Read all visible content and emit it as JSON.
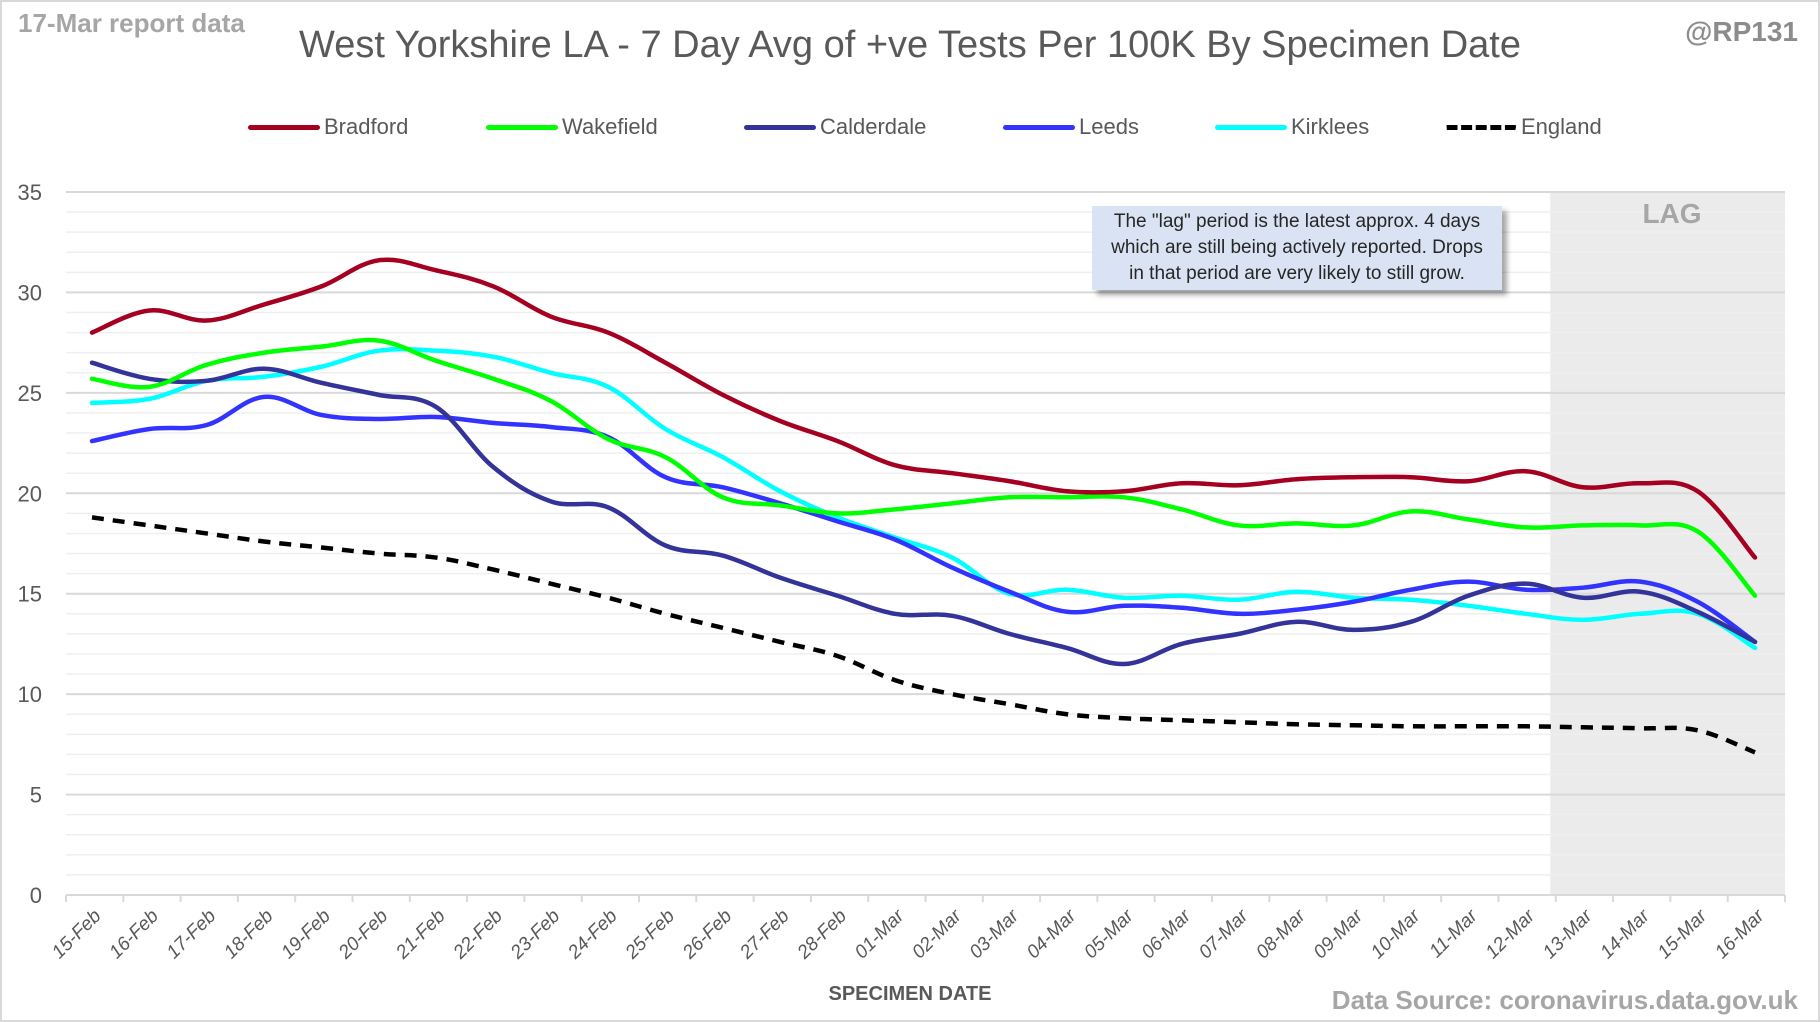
{
  "header": {
    "report_label": "17-Mar report data",
    "handle": "@RP131",
    "source": "Data Source: coronavirus.data.gov.uk"
  },
  "annotation": {
    "lines": [
      "The \"lag\" period is the latest approx. 4 days",
      "which are still being actively reported.  Drops",
      "in that period are very likely to still grow."
    ]
  },
  "lag": {
    "label": "LAG",
    "start": "13-Mar",
    "end": "16-Mar",
    "color": "#ebebeb"
  },
  "chart_data": {
    "type": "line",
    "title": "West Yorkshire LA - 7 Day Avg of +ve Tests Per 100K By Specimen Date",
    "xlabel": "SPECIMEN DATE",
    "ylabel": "",
    "ylim": [
      0,
      35
    ],
    "yticks": [
      0,
      5,
      10,
      15,
      20,
      25,
      30,
      35
    ],
    "minor_grid_step": 1,
    "grid": true,
    "legend_position": "top",
    "categories": [
      "15-Feb",
      "16-Feb",
      "17-Feb",
      "18-Feb",
      "19-Feb",
      "20-Feb",
      "21-Feb",
      "22-Feb",
      "23-Feb",
      "24-Feb",
      "25-Feb",
      "26-Feb",
      "27-Feb",
      "28-Feb",
      "01-Mar",
      "02-Mar",
      "03-Mar",
      "04-Mar",
      "05-Mar",
      "06-Mar",
      "07-Mar",
      "08-Mar",
      "09-Mar",
      "10-Mar",
      "11-Mar",
      "12-Mar",
      "13-Mar",
      "14-Mar",
      "15-Mar",
      "16-Mar"
    ],
    "series": [
      {
        "name": "Bradford",
        "color": "#a50021",
        "dashed": false,
        "values": [
          28.0,
          29.1,
          28.6,
          29.4,
          30.3,
          31.6,
          31.1,
          30.3,
          28.8,
          28.0,
          26.5,
          24.9,
          23.6,
          22.6,
          21.4,
          21.0,
          20.6,
          20.1,
          20.1,
          20.5,
          20.4,
          20.7,
          20.8,
          20.8,
          20.6,
          21.1,
          20.3,
          20.5,
          20.1,
          16.8
        ]
      },
      {
        "name": "Wakefield",
        "color": "#00ff00",
        "dashed": false,
        "values": [
          25.7,
          25.3,
          26.4,
          27.0,
          27.3,
          27.6,
          26.6,
          25.7,
          24.6,
          22.7,
          21.8,
          19.8,
          19.4,
          19.0,
          19.2,
          19.5,
          19.8,
          19.8,
          19.8,
          19.2,
          18.4,
          18.5,
          18.4,
          19.1,
          18.7,
          18.3,
          18.4,
          18.4,
          18.1,
          14.9
        ]
      },
      {
        "name": "Calderdale",
        "color": "#333399",
        "dashed": false,
        "values": [
          26.5,
          25.7,
          25.6,
          26.2,
          25.5,
          24.9,
          24.3,
          21.3,
          19.6,
          19.3,
          17.4,
          16.9,
          15.8,
          14.9,
          14.0,
          13.9,
          13.0,
          12.3,
          11.5,
          12.5,
          13.0,
          13.6,
          13.2,
          13.6,
          14.9,
          15.5,
          14.8,
          15.1,
          14.1,
          12.6
        ]
      },
      {
        "name": "Leeds",
        "color": "#3333ff",
        "dashed": false,
        "values": [
          22.6,
          23.2,
          23.4,
          24.8,
          23.9,
          23.7,
          23.8,
          23.5,
          23.3,
          22.8,
          20.8,
          20.3,
          19.5,
          18.6,
          17.7,
          16.3,
          15.1,
          14.1,
          14.4,
          14.3,
          14.0,
          14.2,
          14.6,
          15.2,
          15.6,
          15.2,
          15.3,
          15.6,
          14.6,
          12.6
        ]
      },
      {
        "name": "Kirklees",
        "color": "#00ffff",
        "dashed": false,
        "values": [
          24.5,
          24.7,
          25.6,
          25.8,
          26.3,
          27.1,
          27.1,
          26.8,
          26.0,
          25.3,
          23.2,
          21.8,
          20.1,
          18.8,
          17.8,
          16.8,
          15.0,
          15.2,
          14.8,
          14.9,
          14.7,
          15.1,
          14.8,
          14.7,
          14.4,
          14.0,
          13.7,
          14.0,
          14.0,
          12.3
        ]
      },
      {
        "name": "England",
        "color": "#000000",
        "dashed": true,
        "values": [
          18.8,
          18.4,
          18.0,
          17.6,
          17.3,
          17.0,
          16.8,
          16.2,
          15.5,
          14.8,
          14.0,
          13.3,
          12.6,
          11.9,
          10.7,
          10.0,
          9.5,
          9.0,
          8.8,
          8.7,
          8.6,
          8.5,
          8.45,
          8.4,
          8.4,
          8.4,
          8.35,
          8.3,
          8.2,
          7.1
        ]
      }
    ]
  }
}
